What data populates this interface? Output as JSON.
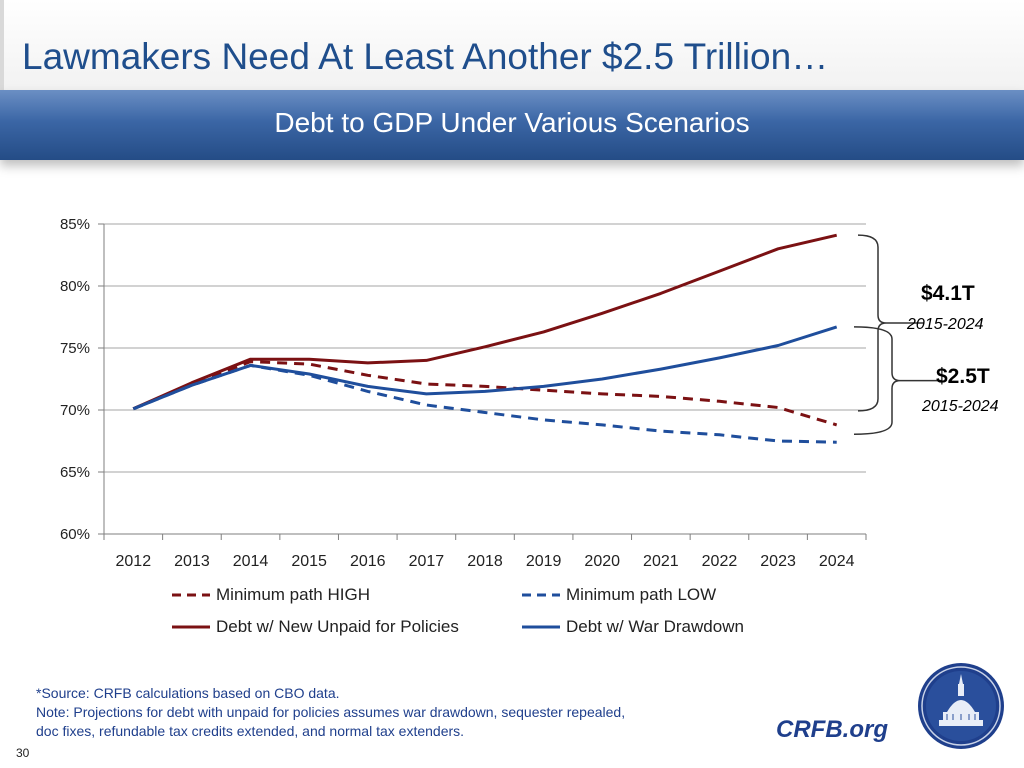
{
  "slide": {
    "title": "Lawmakers Need At Least Another $2.5 Trillion…",
    "subtitle": "Debt to GDP Under Various Scenarios",
    "page_number": "30",
    "site": "CRFB.org",
    "seal_icon": "capitol-dome-seal-icon",
    "colors": {
      "title": "#1f4e8c",
      "banner": "#3b66a5",
      "footnote": "#1f3f8c"
    }
  },
  "chart_data": {
    "type": "line",
    "x": [
      "2012",
      "2013",
      "2014",
      "2015",
      "2016",
      "2017",
      "2018",
      "2019",
      "2020",
      "2021",
      "2022",
      "2023",
      "2024"
    ],
    "ylim": [
      60,
      85
    ],
    "yticks": [
      "60%",
      "65%",
      "70%",
      "75%",
      "80%",
      "85%"
    ],
    "ytick_values": [
      60,
      65,
      70,
      75,
      80,
      85
    ],
    "grid": true,
    "legend_position": "bottom",
    "series": [
      {
        "name": "Minimum path HIGH",
        "color": "#7b1113",
        "dash": true,
        "values": [
          70.1,
          72.1,
          73.9,
          73.7,
          72.8,
          72.1,
          71.9,
          71.6,
          71.3,
          71.1,
          70.7,
          70.2,
          68.8
        ]
      },
      {
        "name": "Minimum path LOW",
        "color": "#1f4e9c",
        "dash": true,
        "values": [
          70.1,
          72.0,
          73.6,
          72.8,
          71.5,
          70.4,
          69.8,
          69.2,
          68.8,
          68.3,
          68.0,
          67.5,
          67.4
        ]
      },
      {
        "name": "Debt w/ New Unpaid for Policies",
        "color": "#7b1113",
        "dash": false,
        "values": [
          70.1,
          72.2,
          74.1,
          74.1,
          73.8,
          74.0,
          75.1,
          76.3,
          77.8,
          79.4,
          81.2,
          83.0,
          84.1
        ]
      },
      {
        "name": "Debt w/ War Drawdown",
        "color": "#1f4e9c",
        "dash": false,
        "values": [
          70.1,
          72.0,
          73.6,
          72.9,
          71.9,
          71.3,
          71.5,
          71.9,
          72.5,
          73.3,
          74.2,
          75.2,
          76.7
        ]
      }
    ],
    "annotations": [
      {
        "amount": "$4.1T",
        "range": "2015-2024"
      },
      {
        "amount": "$2.5T",
        "range": "2015-2024"
      }
    ]
  },
  "footnote": {
    "source": "*Source: CRFB calculations based on CBO data.",
    "note_line1": "Note: Projections for debt with unpaid for policies assumes war drawdown, sequester repealed,",
    "note_line2": "doc fixes, refundable tax credits extended, and normal tax extenders."
  }
}
